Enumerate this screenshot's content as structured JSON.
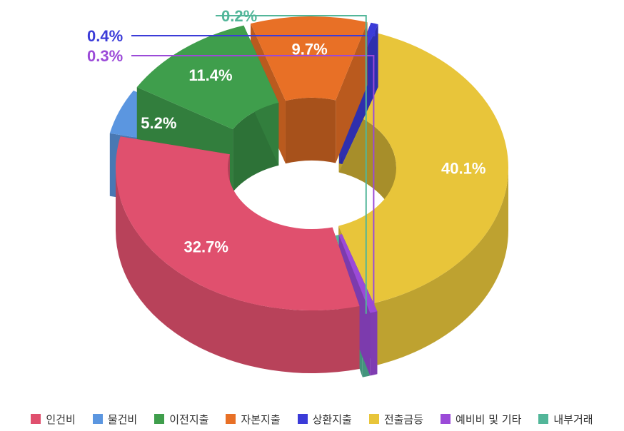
{
  "chart_data": {
    "type": "pie",
    "variant": "3d-donut",
    "title": "",
    "categories": [
      "인건비",
      "물건비",
      "이전지출",
      "자본지출",
      "상환지출",
      "전출금등",
      "예비비 및 기타",
      "내부거래"
    ],
    "values": [
      32.7,
      5.2,
      11.4,
      9.7,
      0.4,
      40.1,
      0.3,
      0.2
    ],
    "value_labels": [
      "32.7%",
      "5.2%",
      "11.4%",
      "9.7%",
      "0.4%",
      "40.1%",
      "0.3%",
      "0.2%"
    ],
    "colors": [
      "#e0506e",
      "#5b96e0",
      "#3f9e4c",
      "#e87026",
      "#3b3bd8",
      "#e8c53a",
      "#9b4ad8",
      "#52b699"
    ],
    "legend_position": "bottom"
  }
}
